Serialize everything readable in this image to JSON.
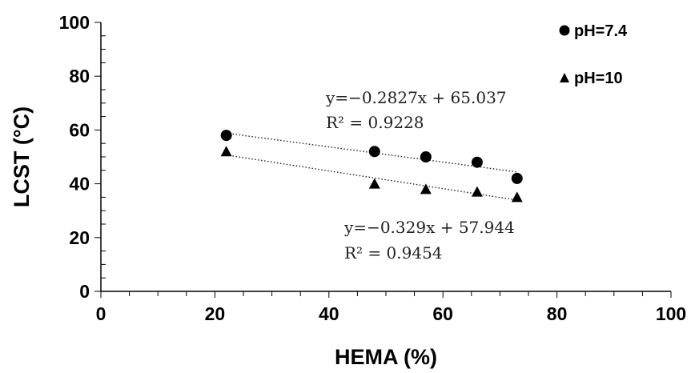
{
  "chart_data": {
    "type": "scatter",
    "xlabel": "HEMA (%)",
    "ylabel": "LCST (°C)",
    "xlim": [
      0,
      100
    ],
    "ylim": [
      0,
      100
    ],
    "x_ticks": [
      "0",
      "20",
      "40",
      "60",
      "80",
      "100"
    ],
    "y_ticks": [
      "0",
      "20",
      "40",
      "60",
      "80",
      "100"
    ],
    "grid": false,
    "legend_position": "top-right",
    "series": [
      {
        "name": "pH=7.4",
        "marker": "circle",
        "x": [
          22,
          48,
          57,
          66,
          73
        ],
        "y": [
          58,
          52,
          50,
          48,
          42
        ],
        "trendline": {
          "slope": -0.2827,
          "intercept": 65.037
        },
        "equation": "y=−0.2827x + 65.037",
        "r2": "R² = 0.9228"
      },
      {
        "name": "pH=10",
        "marker": "triangle",
        "x": [
          22,
          48,
          57,
          66,
          73
        ],
        "y": [
          52,
          40,
          38,
          37,
          35
        ],
        "trendline": {
          "slope": -0.329,
          "intercept": 57.944
        },
        "equation": "y=−0.329x + 57.944",
        "r2": "R² = 0.9454"
      }
    ],
    "colors": {
      "marker": "#000000",
      "trendline": "#222222"
    }
  }
}
